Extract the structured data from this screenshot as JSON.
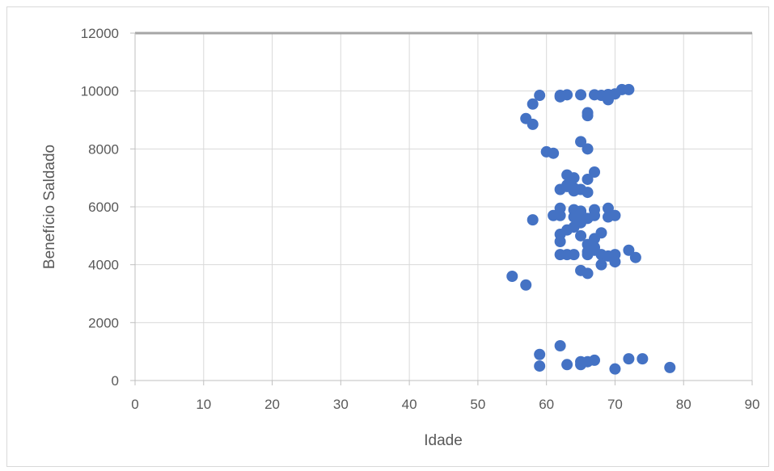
{
  "chart_data": {
    "type": "scatter",
    "title": "",
    "xlabel": "Idade",
    "ylabel": "Benefício Saldado",
    "xlim": [
      0,
      90
    ],
    "ylim": [
      0,
      12000
    ],
    "xticks": [
      0,
      10,
      20,
      30,
      40,
      50,
      60,
      70,
      80,
      90
    ],
    "yticks": [
      0,
      2000,
      4000,
      6000,
      8000,
      10000,
      12000
    ],
    "grid": true,
    "legend": "none",
    "marker_color": "#4472C4",
    "gridline_color": "#d9d9d9",
    "series": [
      {
        "points": [
          [
            59,
            9850
          ],
          [
            58,
            9550
          ],
          [
            57,
            9050
          ],
          [
            58,
            8850
          ],
          [
            62,
            9850
          ],
          [
            62,
            9800
          ],
          [
            63,
            9870
          ],
          [
            65,
            9870
          ],
          [
            67,
            9870
          ],
          [
            68,
            9850
          ],
          [
            69,
            9880
          ],
          [
            69,
            9700
          ],
          [
            70,
            9900
          ],
          [
            71,
            10050
          ],
          [
            72,
            10050
          ],
          [
            66,
            9250
          ],
          [
            66,
            9150
          ],
          [
            60,
            7900
          ],
          [
            61,
            7850
          ],
          [
            65,
            8250
          ],
          [
            66,
            8000
          ],
          [
            63,
            7100
          ],
          [
            64,
            7000
          ],
          [
            67,
            7200
          ],
          [
            66,
            6950
          ],
          [
            62,
            6600
          ],
          [
            63,
            6700
          ],
          [
            64,
            6650
          ],
          [
            65,
            6600
          ],
          [
            66,
            6500
          ],
          [
            63,
            6750
          ],
          [
            64,
            6550
          ],
          [
            62,
            5950
          ],
          [
            64,
            5900
          ],
          [
            65,
            5850
          ],
          [
            67,
            5900
          ],
          [
            69,
            5950
          ],
          [
            61,
            5700
          ],
          [
            62,
            5700
          ],
          [
            64,
            5650
          ],
          [
            65,
            5750
          ],
          [
            66,
            5600
          ],
          [
            67,
            5700
          ],
          [
            69,
            5650
          ],
          [
            70,
            5700
          ],
          [
            58,
            5550
          ],
          [
            65,
            5450
          ],
          [
            64,
            5300
          ],
          [
            63,
            5200
          ],
          [
            62,
            5050
          ],
          [
            68,
            5100
          ],
          [
            65,
            5000
          ],
          [
            62,
            4800
          ],
          [
            67,
            4900
          ],
          [
            66,
            4700
          ],
          [
            67,
            4600
          ],
          [
            66,
            4450
          ],
          [
            67,
            4500
          ],
          [
            72,
            4500
          ],
          [
            62,
            4350
          ],
          [
            63,
            4350
          ],
          [
            64,
            4350
          ],
          [
            66,
            4350
          ],
          [
            68,
            4350
          ],
          [
            69,
            4300
          ],
          [
            70,
            4350
          ],
          [
            73,
            4250
          ],
          [
            68,
            4000
          ],
          [
            70,
            4100
          ],
          [
            65,
            3800
          ],
          [
            66,
            3700
          ],
          [
            55,
            3600
          ],
          [
            57,
            3300
          ],
          [
            62,
            1200
          ],
          [
            59,
            900
          ],
          [
            59,
            500
          ],
          [
            63,
            550
          ],
          [
            65,
            650
          ],
          [
            65,
            550
          ],
          [
            66,
            650
          ],
          [
            67,
            700
          ],
          [
            72,
            750
          ],
          [
            74,
            750
          ],
          [
            70,
            400
          ],
          [
            78,
            450
          ]
        ]
      }
    ]
  }
}
